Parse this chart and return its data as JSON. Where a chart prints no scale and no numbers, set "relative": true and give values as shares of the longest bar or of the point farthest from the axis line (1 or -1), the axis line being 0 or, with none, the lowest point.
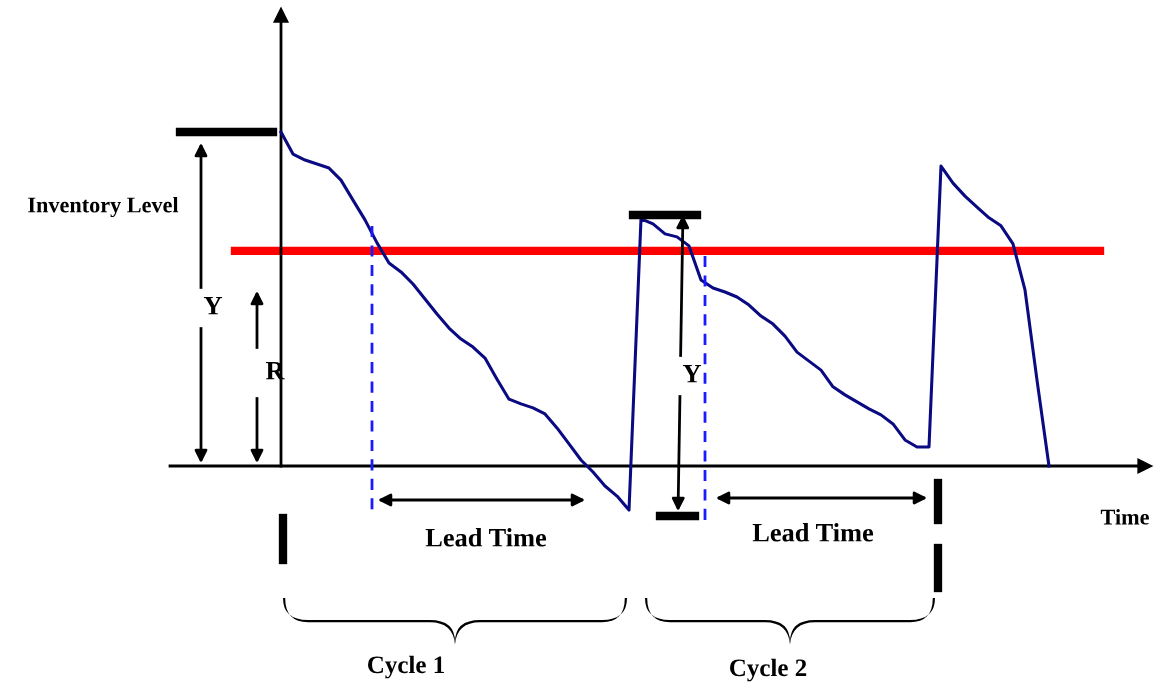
{
  "chart_data": {
    "type": "line",
    "relative": true,
    "xlabel": "Time",
    "categories": [
      null,
      null,
      null,
      null,
      null,
      null,
      null,
      null,
      null,
      null,
      null,
      null,
      null,
      null,
      null,
      null,
      null,
      null,
      null,
      null,
      null,
      null,
      null,
      null,
      null,
      null,
      null,
      null,
      null,
      null,
      null,
      null,
      null,
      null,
      null,
      null,
      null,
      null,
      null,
      null,
      null,
      null,
      null,
      null,
      null,
      null,
      null,
      null,
      null,
      null,
      null,
      null,
      null,
      null,
      null,
      null,
      null,
      null,
      null,
      null,
      null,
      null,
      null,
      null,
      null
    ],
    "series": [
      {
        "color": "#0a0a82",
        "values": [
          1.0,
          0.934,
          0.916,
          0.904,
          0.892,
          0.856,
          0.796,
          0.737,
          0.668,
          0.608,
          0.581,
          0.545,
          0.5,
          0.455,
          0.413,
          0.38,
          0.356,
          0.323,
          0.26,
          0.2,
          0.186,
          0.174,
          0.156,
          0.114,
          0.066,
          0.018,
          -0.018,
          -0.06,
          -0.09,
          -0.132,
          0.74,
          0.725,
          0.695,
          0.686,
          0.659,
          0.557,
          0.533,
          0.521,
          0.506,
          0.482,
          0.449,
          0.425,
          0.389,
          0.341,
          0.314,
          0.287,
          0.237,
          0.213,
          0.192,
          0.171,
          0.153,
          0.126,
          0.078,
          0.057,
          0.057,
          0.898,
          0.847,
          0.808,
          0.775,
          0.743,
          0.719,
          0.665,
          0.527,
          0.257,
          0.0
        ]
      }
    ],
    "ref_lines": [
      {
        "axis": "y",
        "value": 0.644,
        "color": "#ff0000"
      }
    ],
    "annotations": [
      "Inventory Level",
      "Y",
      "R",
      "Y",
      "Lead Time",
      "Lead Time",
      "Cycle 1",
      "Cycle 2"
    ]
  }
}
